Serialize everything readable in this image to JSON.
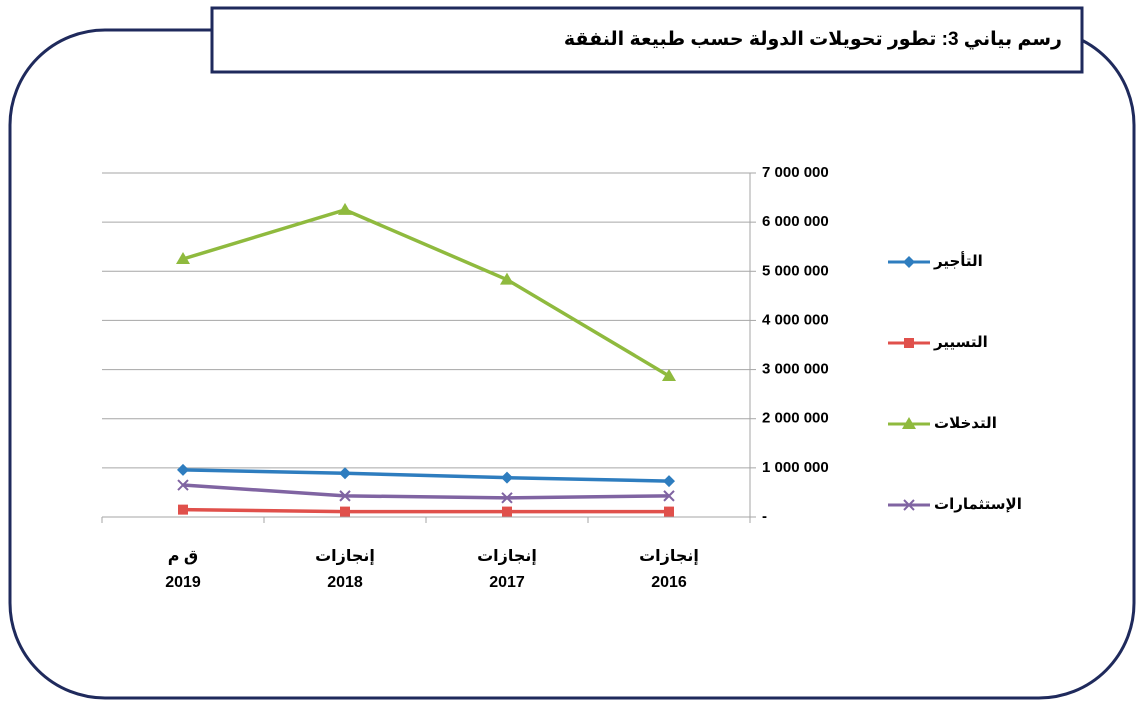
{
  "chart_data": {
    "type": "line",
    "title": "رسم بياني 3: تطور تحويلات الدولة حسب طبيعة النفقة",
    "x_reversed": true,
    "y_axis_side": "right",
    "grid": true,
    "legend": "right",
    "categories": [
      [
        "إنجازات",
        "2016"
      ],
      [
        "إنجازات",
        "2017"
      ],
      [
        "إنجازات",
        "2018"
      ],
      [
        "ق م",
        "2019"
      ]
    ],
    "series": [
      {
        "name": "التأجير",
        "color": "#2e7dbf",
        "marker": "diamond",
        "values": [
          730000,
          800000,
          890000,
          960000
        ]
      },
      {
        "name": "التسيير",
        "color": "#e0504b",
        "marker": "square",
        "values": [
          110000,
          110000,
          110000,
          150000
        ]
      },
      {
        "name": "التدخلات",
        "color": "#8fba3e",
        "marker": "triangle",
        "values": [
          2870000,
          4830000,
          6250000,
          5250000
        ]
      },
      {
        "name": "الإستثمارات",
        "color": "#8064a2",
        "marker": "x",
        "values": [
          430000,
          390000,
          430000,
          650000
        ]
      }
    ],
    "ylim": [
      0,
      7000000
    ],
    "yticks": [
      {
        "value": 0,
        "label": "-"
      },
      {
        "value": 1000000,
        "label": "1 000 000"
      },
      {
        "value": 2000000,
        "label": "2 000 000"
      },
      {
        "value": 3000000,
        "label": "3 000 000"
      },
      {
        "value": 4000000,
        "label": "4 000 000"
      },
      {
        "value": 5000000,
        "label": "5 000 000"
      },
      {
        "value": 6000000,
        "label": "6 000 000"
      },
      {
        "value": 7000000,
        "label": "7 000 000"
      }
    ]
  }
}
